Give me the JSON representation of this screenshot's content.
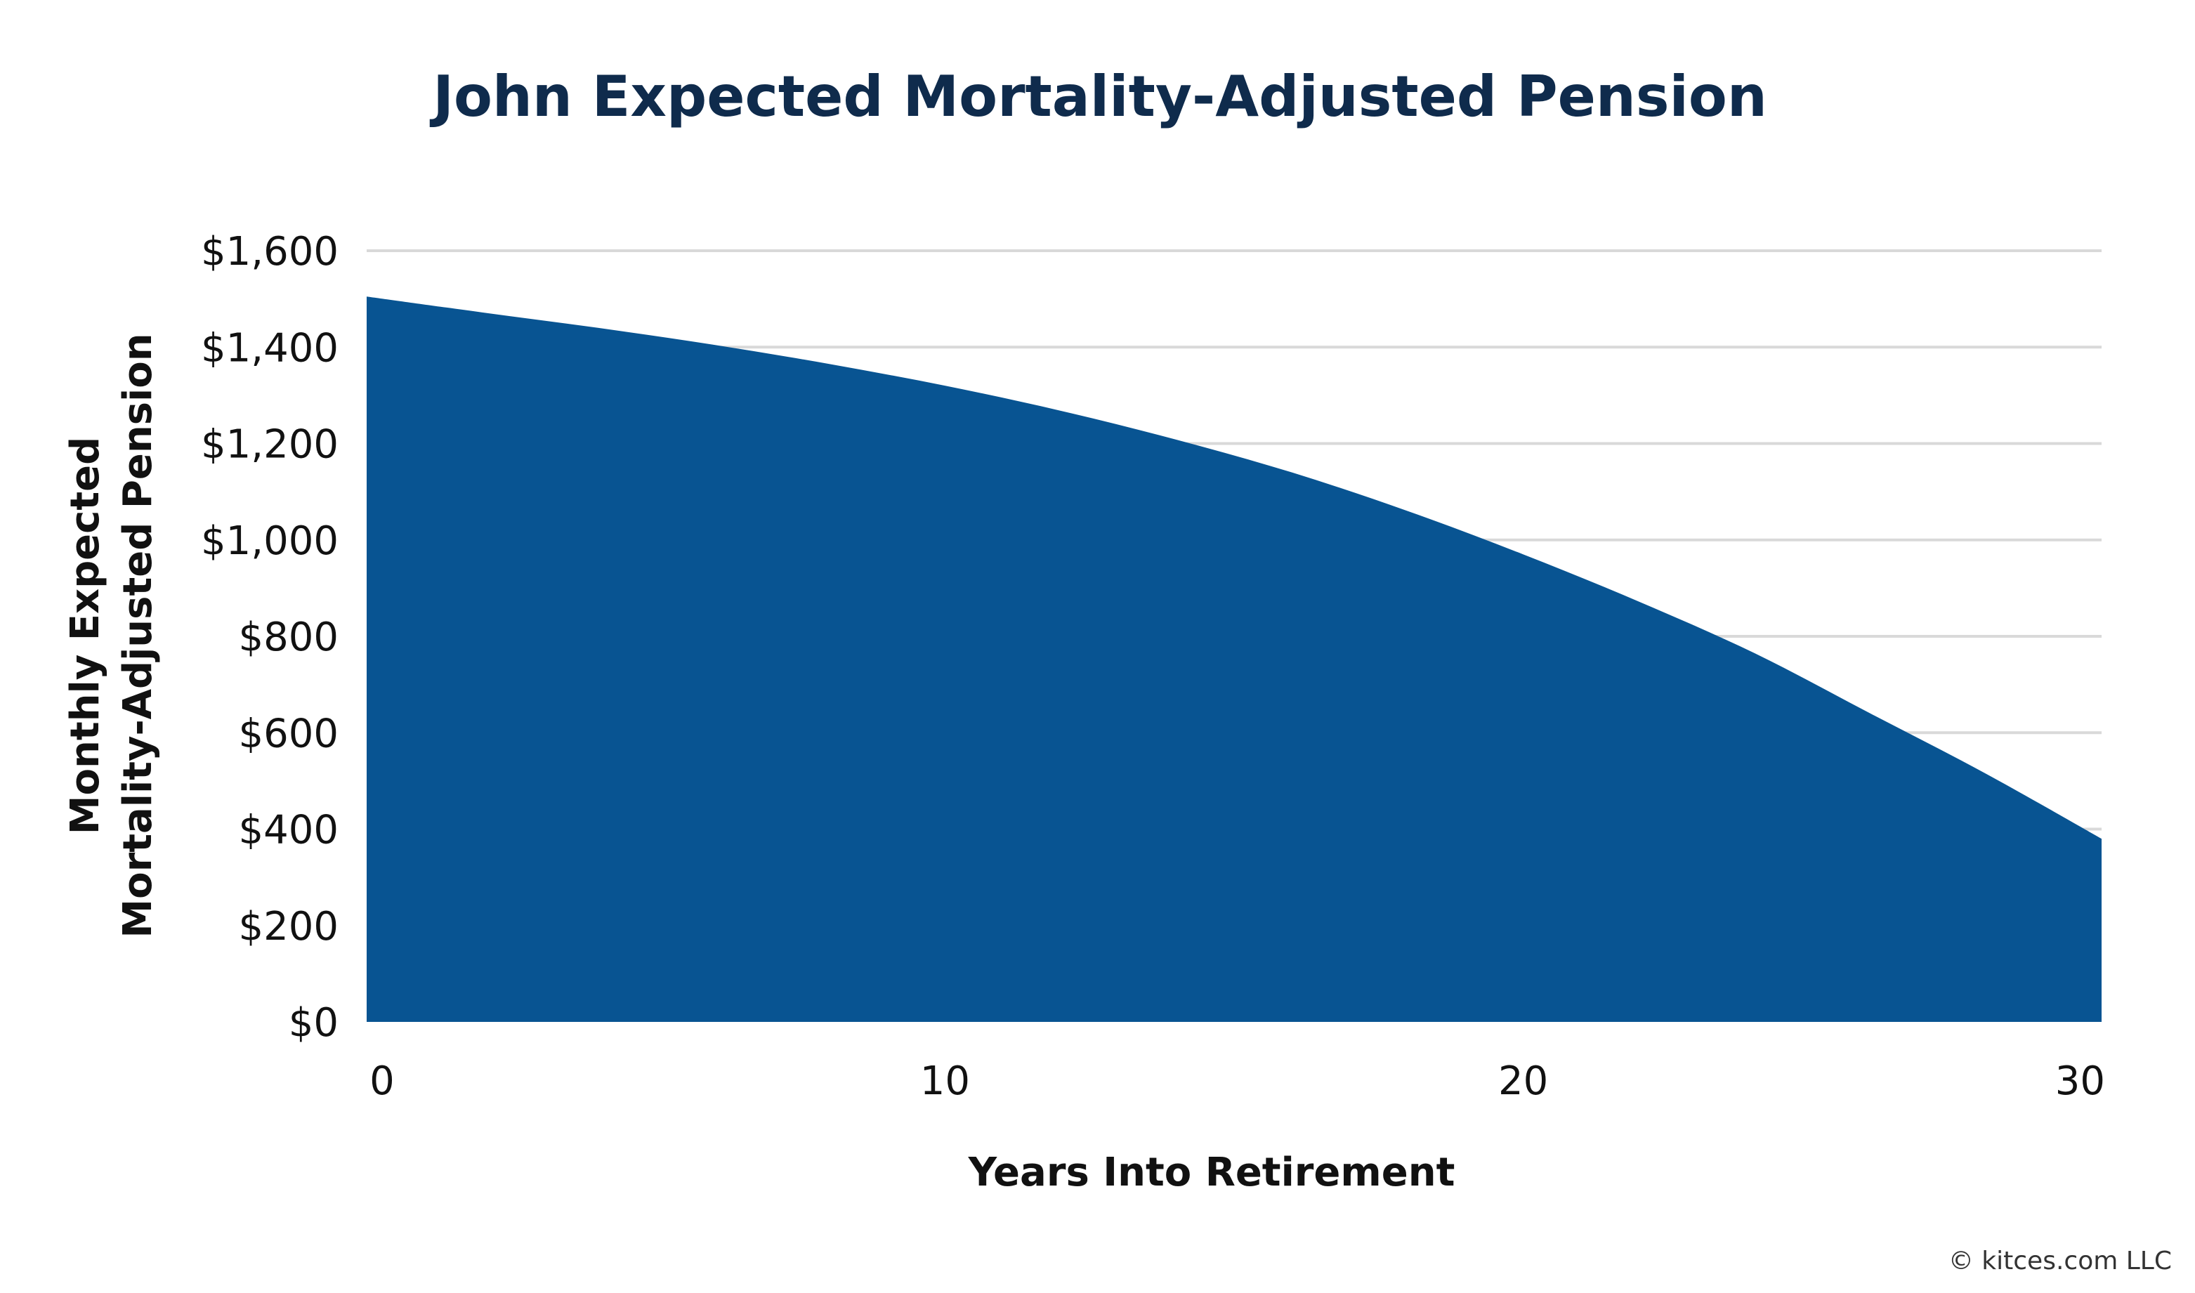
{
  "chart_data": {
    "type": "area",
    "title": "John Expected Mortality-Adjusted Pension",
    "xlabel": "Years Into Retirement",
    "ylabel_lines": [
      "Monthly Expected",
      "Mortality-Adjusted Pension"
    ],
    "x_ticks": [
      0,
      10,
      20,
      30
    ],
    "x_tick_labels": [
      "0",
      "10",
      "20",
      "30"
    ],
    "y_ticks": [
      0,
      200,
      400,
      600,
      800,
      1000,
      1200,
      1400,
      1600
    ],
    "y_tick_labels": [
      "$0",
      "$200",
      "$400",
      "$600",
      "$800",
      "$1,000",
      "$1,200",
      "$1,400",
      "$1,600"
    ],
    "xlim": [
      0,
      30
    ],
    "ylim": [
      0,
      1600
    ],
    "grid": true,
    "legend": "none",
    "series": [
      {
        "color": "#085492",
        "x": [
          0,
          2,
          4,
          6,
          8,
          10,
          12,
          14,
          16,
          18,
          20,
          22,
          24,
          26,
          28,
          30
        ],
        "values": [
          1505,
          1472,
          1440,
          1405,
          1365,
          1320,
          1268,
          1208,
          1140,
          1060,
          970,
          872,
          765,
          640,
          515,
          380
        ]
      }
    ]
  },
  "credit": "© kitces.com LLC"
}
